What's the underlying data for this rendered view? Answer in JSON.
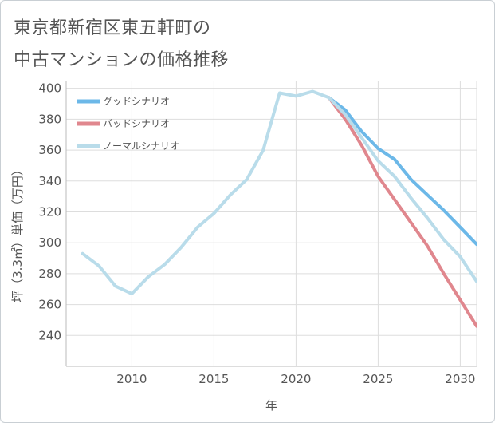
{
  "title": {
    "line1": "東京都新宿区東五軒町の",
    "line2": "中古マンションの価格推移"
  },
  "colors": {
    "good": "#6cb8e8",
    "bad": "#e0878e",
    "normal": "#b9dcea",
    "grid": "#dddddd",
    "axis": "#555555"
  },
  "chart_data": {
    "type": "line",
    "title": "東京都新宿区東五軒町の中古マンションの価格推移",
    "xlabel": "年",
    "ylabel": "坪（3.3㎡）単価（万円）",
    "xlim": [
      2006,
      2031
    ],
    "ylim": [
      220,
      405
    ],
    "xticks": [
      2010,
      2015,
      2020,
      2025,
      2030
    ],
    "yticks": [
      240,
      260,
      280,
      300,
      320,
      340,
      360,
      380,
      400
    ],
    "grid": true,
    "legend_position": "top-left",
    "series": [
      {
        "key": "good",
        "name": "グッドシナリオ",
        "x": [
          2022,
          2023,
          2024,
          2025,
          2026,
          2027,
          2028,
          2029,
          2030,
          2031
        ],
        "values": [
          394,
          386,
          372,
          361,
          354,
          341,
          331,
          321,
          310,
          299
        ]
      },
      {
        "key": "bad",
        "name": "バッドシナリオ",
        "x": [
          2022,
          2023,
          2024,
          2025,
          2026,
          2027,
          2028,
          2029,
          2030,
          2031
        ],
        "values": [
          394,
          380,
          363,
          343,
          328,
          313,
          298,
          280,
          263,
          246
        ]
      },
      {
        "key": "normal",
        "name": "ノーマルシナリオ",
        "x": [
          2007,
          2008,
          2009,
          2010,
          2011,
          2012,
          2013,
          2014,
          2015,
          2016,
          2017,
          2018,
          2019,
          2020,
          2021,
          2022,
          2023,
          2024,
          2025,
          2026,
          2027,
          2028,
          2029,
          2030,
          2031
        ],
        "values": [
          293,
          285,
          272,
          267,
          278,
          286,
          297,
          310,
          319,
          331,
          341,
          360,
          397,
          395,
          398,
          394,
          383,
          368,
          353,
          343,
          329,
          316,
          302,
          291,
          275
        ]
      }
    ]
  }
}
